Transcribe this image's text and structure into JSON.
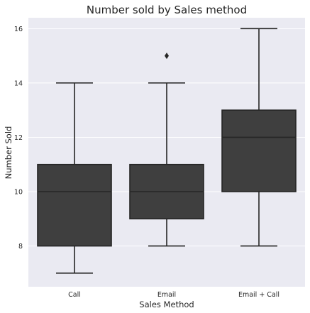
{
  "chart_data": {
    "type": "box",
    "title": "Number sold by Sales method",
    "xlabel": "Sales Method",
    "ylabel": "Number Sold",
    "ylim": [
      6.5,
      16.4
    ],
    "yticks": [
      8,
      10,
      12,
      14,
      16
    ],
    "grid": true,
    "colors": {
      "plot_background": "#eaeaf2",
      "box_fill": "#3f3f3f",
      "line": "#262626",
      "grid": "#ffffff"
    },
    "categories": [
      "Call",
      "Email",
      "Email + Call"
    ],
    "boxes": [
      {
        "category": "Call",
        "whisker_low": 7,
        "q1": 8,
        "median": 10,
        "q3": 11,
        "whisker_high": 14,
        "outliers": []
      },
      {
        "category": "Email",
        "whisker_low": 8,
        "q1": 9,
        "median": 10,
        "q3": 11,
        "whisker_high": 14,
        "outliers": [
          15
        ]
      },
      {
        "category": "Email + Call",
        "whisker_low": 8,
        "q1": 10,
        "median": 12,
        "q3": 13,
        "whisker_high": 16,
        "outliers": []
      }
    ]
  }
}
